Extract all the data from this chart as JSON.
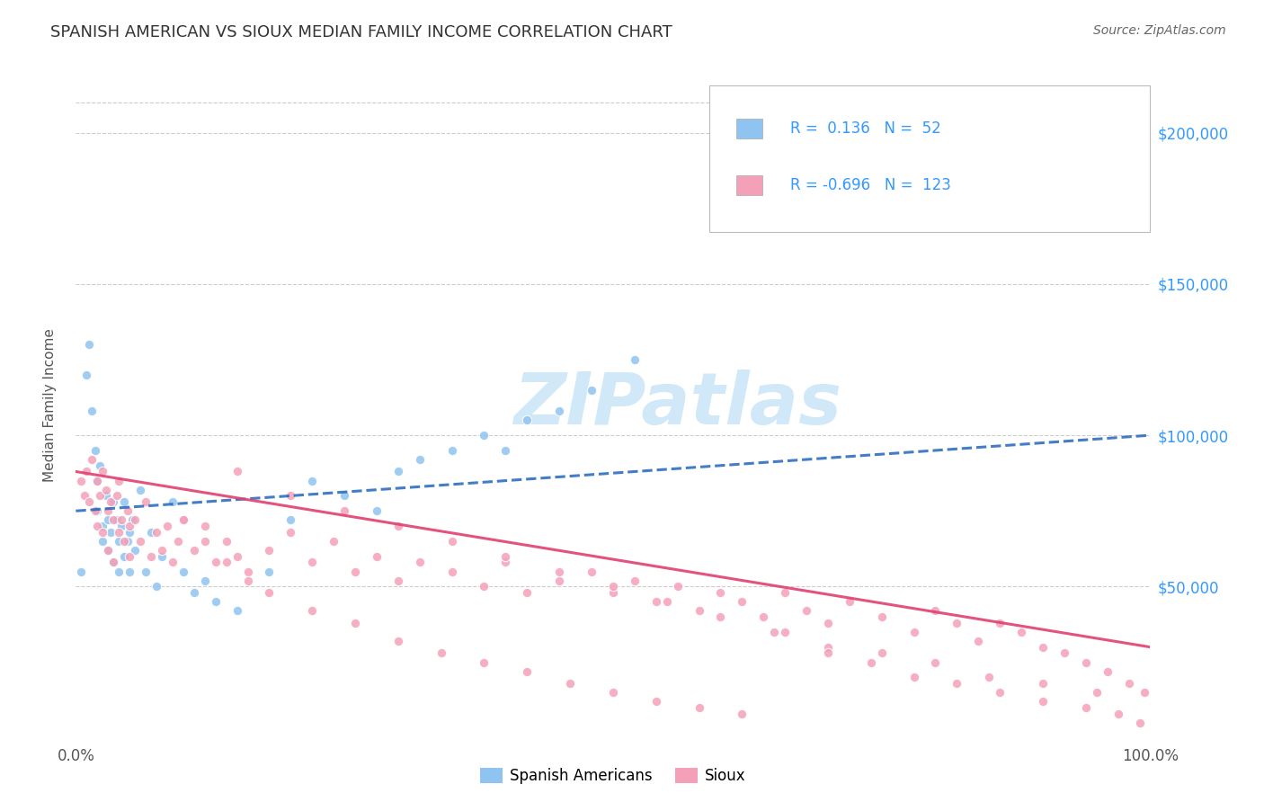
{
  "title": "SPANISH AMERICAN VS SIOUX MEDIAN FAMILY INCOME CORRELATION CHART",
  "source_text": "Source: ZipAtlas.com",
  "ylabel": "Median Family Income",
  "xlim": [
    0,
    1.0
  ],
  "ylim": [
    0,
    220000
  ],
  "ytick_labels": [
    "$50,000",
    "$100,000",
    "$150,000",
    "$200,000"
  ],
  "ytick_values": [
    50000,
    100000,
    150000,
    200000
  ],
  "legend_v1": "0.136",
  "legend_n1": "52",
  "legend_v2": "-0.696",
  "legend_n2": "123",
  "color_blue": "#90c4f0",
  "color_pink": "#f4a0b8",
  "color_blue_line": "#2266bb",
  "color_pink_line": "#e04070",
  "watermark": "ZIPatlas",
  "watermark_color": "#d0e8f8",
  "title_color": "#333333",
  "source_color": "#666666",
  "axis_label_color": "#555555",
  "ytick_color": "#3399ff",
  "background_color": "#ffffff",
  "grid_color": "#cccccc",
  "blue_x": [
    0.005,
    0.01,
    0.012,
    0.015,
    0.018,
    0.02,
    0.02,
    0.022,
    0.025,
    0.025,
    0.028,
    0.03,
    0.03,
    0.032,
    0.035,
    0.035,
    0.038,
    0.04,
    0.04,
    0.042,
    0.045,
    0.045,
    0.048,
    0.05,
    0.05,
    0.052,
    0.055,
    0.06,
    0.065,
    0.07,
    0.075,
    0.08,
    0.09,
    0.1,
    0.11,
    0.12,
    0.13,
    0.15,
    0.18,
    0.2,
    0.22,
    0.25,
    0.28,
    0.3,
    0.32,
    0.35,
    0.38,
    0.4,
    0.42,
    0.45,
    0.48,
    0.52
  ],
  "blue_y": [
    55000,
    120000,
    130000,
    108000,
    95000,
    85000,
    75000,
    90000,
    70000,
    65000,
    80000,
    72000,
    62000,
    68000,
    78000,
    58000,
    72000,
    65000,
    55000,
    70000,
    60000,
    78000,
    65000,
    68000,
    55000,
    72000,
    62000,
    82000,
    55000,
    68000,
    50000,
    60000,
    78000,
    55000,
    48000,
    52000,
    45000,
    42000,
    55000,
    72000,
    85000,
    80000,
    75000,
    88000,
    92000,
    95000,
    100000,
    95000,
    105000,
    108000,
    115000,
    125000
  ],
  "pink_x": [
    0.005,
    0.008,
    0.01,
    0.012,
    0.015,
    0.018,
    0.02,
    0.02,
    0.022,
    0.025,
    0.025,
    0.028,
    0.03,
    0.03,
    0.032,
    0.035,
    0.035,
    0.038,
    0.04,
    0.04,
    0.042,
    0.045,
    0.048,
    0.05,
    0.05,
    0.055,
    0.06,
    0.065,
    0.07,
    0.075,
    0.08,
    0.085,
    0.09,
    0.095,
    0.1,
    0.11,
    0.12,
    0.13,
    0.14,
    0.15,
    0.16,
    0.18,
    0.2,
    0.22,
    0.24,
    0.26,
    0.28,
    0.3,
    0.32,
    0.35,
    0.38,
    0.4,
    0.42,
    0.45,
    0.48,
    0.5,
    0.52,
    0.54,
    0.56,
    0.58,
    0.6,
    0.62,
    0.64,
    0.66,
    0.68,
    0.7,
    0.72,
    0.75,
    0.78,
    0.8,
    0.82,
    0.84,
    0.86,
    0.88,
    0.9,
    0.92,
    0.94,
    0.96,
    0.98,
    0.995,
    0.15,
    0.2,
    0.25,
    0.3,
    0.35,
    0.4,
    0.45,
    0.5,
    0.55,
    0.6,
    0.65,
    0.7,
    0.75,
    0.8,
    0.85,
    0.9,
    0.95,
    0.1,
    0.12,
    0.14,
    0.16,
    0.18,
    0.22,
    0.26,
    0.3,
    0.34,
    0.38,
    0.42,
    0.46,
    0.5,
    0.54,
    0.58,
    0.62,
    0.66,
    0.7,
    0.74,
    0.78,
    0.82,
    0.86,
    0.9,
    0.94,
    0.97,
    0.99
  ],
  "pink_y": [
    85000,
    80000,
    88000,
    78000,
    92000,
    75000,
    85000,
    70000,
    80000,
    88000,
    68000,
    82000,
    75000,
    62000,
    78000,
    72000,
    58000,
    80000,
    68000,
    85000,
    72000,
    65000,
    75000,
    70000,
    60000,
    72000,
    65000,
    78000,
    60000,
    68000,
    62000,
    70000,
    58000,
    65000,
    72000,
    62000,
    70000,
    58000,
    65000,
    60000,
    55000,
    62000,
    68000,
    58000,
    65000,
    55000,
    60000,
    52000,
    58000,
    55000,
    50000,
    58000,
    48000,
    52000,
    55000,
    48000,
    52000,
    45000,
    50000,
    42000,
    48000,
    45000,
    40000,
    48000,
    42000,
    38000,
    45000,
    40000,
    35000,
    42000,
    38000,
    32000,
    38000,
    35000,
    30000,
    28000,
    25000,
    22000,
    18000,
    15000,
    88000,
    80000,
    75000,
    70000,
    65000,
    60000,
    55000,
    50000,
    45000,
    40000,
    35000,
    30000,
    28000,
    25000,
    20000,
    18000,
    15000,
    72000,
    65000,
    58000,
    52000,
    48000,
    42000,
    38000,
    32000,
    28000,
    25000,
    22000,
    18000,
    15000,
    12000,
    10000,
    8000,
    35000,
    28000,
    25000,
    20000,
    18000,
    15000,
    12000,
    10000,
    8000,
    5000
  ]
}
